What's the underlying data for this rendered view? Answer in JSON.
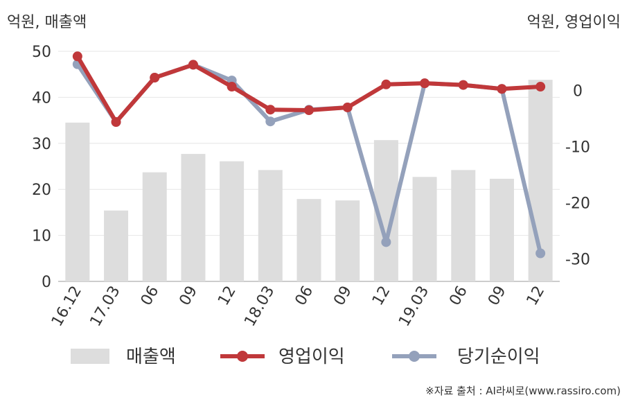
{
  "chart_data": {
    "type": "bar+line",
    "unit_left": "억원, 매출액",
    "unit_right": "억원, 영업이익",
    "categories": [
      "16.12",
      "17.03",
      "06",
      "09",
      "12",
      "18.03",
      "06",
      "09",
      "12",
      "19.03",
      "06",
      "09",
      "12"
    ],
    "left_axis": {
      "min": 0,
      "max": 50,
      "ticks": [
        0,
        10,
        20,
        30,
        40,
        50
      ]
    },
    "right_axis": {
      "min": -34,
      "max": 7,
      "ticks": [
        0,
        -10,
        -20,
        -30
      ]
    },
    "series": [
      {
        "name": "매출액",
        "kind": "bar",
        "axis": "left",
        "color": "#dddddd",
        "values": [
          34.5,
          15.4,
          23.7,
          27.7,
          26.1,
          24.2,
          17.9,
          17.6,
          30.7,
          22.7,
          24.2,
          22.3,
          43.8
        ]
      },
      {
        "name": "영업이익",
        "kind": "line",
        "axis": "right",
        "color": "#c0383a",
        "values": [
          6.1,
          -5.6,
          2.3,
          4.6,
          0.7,
          -3.4,
          -3.5,
          -3.0,
          1.1,
          1.3,
          1.0,
          0.3,
          0.7
        ]
      },
      {
        "name": "당기순이익",
        "kind": "line",
        "axis": "right",
        "color": "#94a1bb",
        "values": [
          4.7,
          -5.6,
          2.3,
          4.6,
          1.8,
          -5.5,
          -3.4,
          -3.0,
          -27.0,
          1.3,
          1.0,
          0.3,
          -29.0
        ]
      }
    ],
    "gridlines": true,
    "legend_position": "bottom"
  },
  "source_note": "※자료 출처 : AI라씨로(www.rassiro.com)"
}
